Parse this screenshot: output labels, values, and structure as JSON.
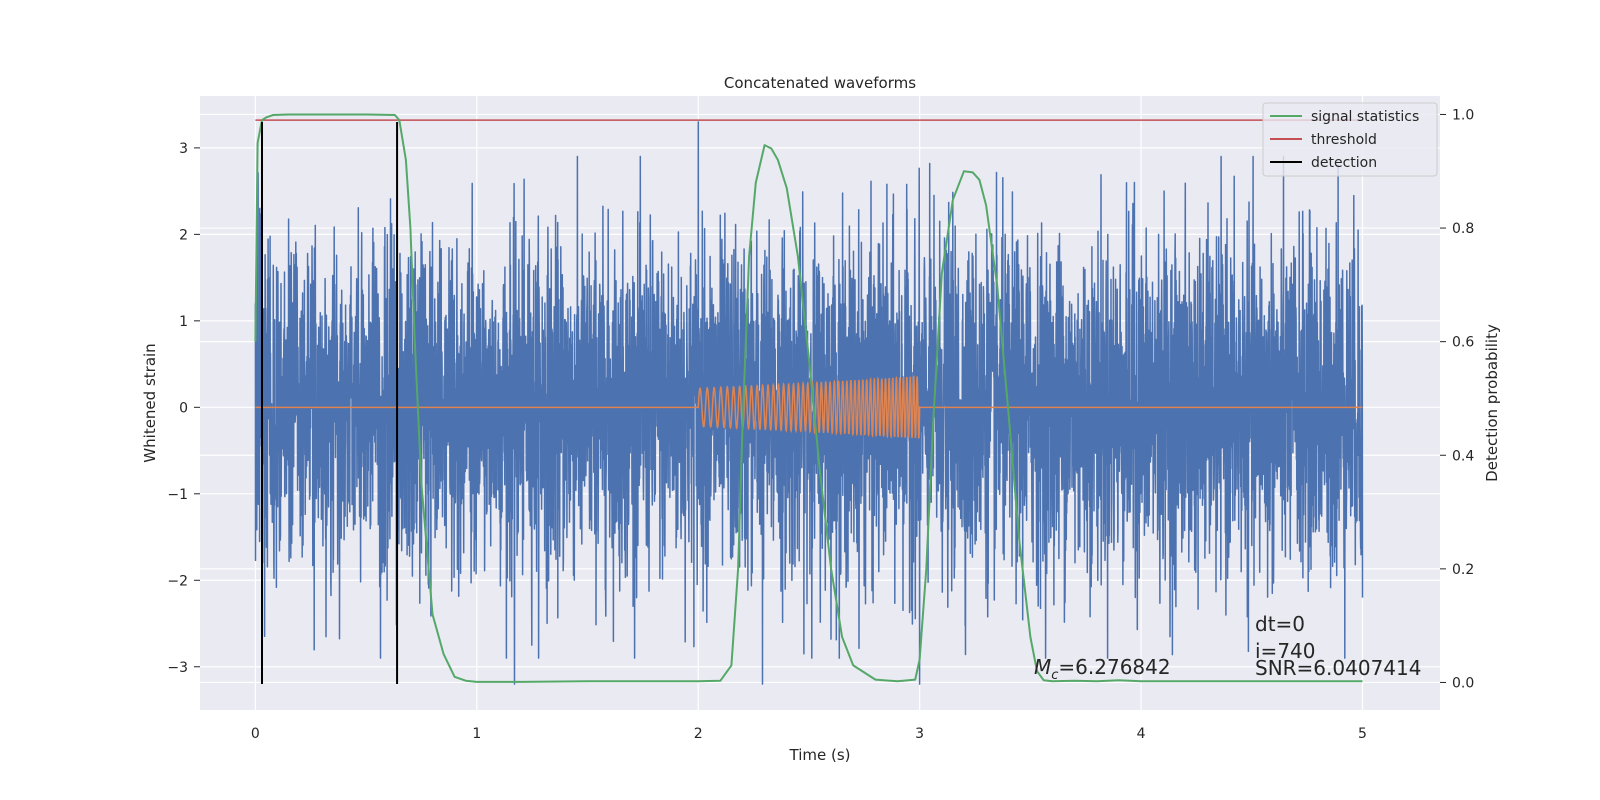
{
  "chart_data": {
    "type": "line",
    "title": "Concatenated waveforms",
    "xlabel": "Time (s)",
    "ylabel": "Whitened strain",
    "y2label": "Detection probability",
    "xlim": [
      -0.25,
      5.35
    ],
    "ylim": [
      -3.5,
      3.6
    ],
    "y2lim": [
      -0.0485,
      1.0325
    ],
    "x_ticks": [
      0,
      1,
      2,
      3,
      4,
      5
    ],
    "y_ticks": [
      -3,
      -2,
      -1,
      0,
      1,
      2,
      3
    ],
    "y2_ticks": [
      0.0,
      0.2,
      0.4,
      0.6,
      0.8,
      1.0
    ],
    "grid": true,
    "legend_position": "top-right",
    "legend": [
      "signal statistics",
      "threshold",
      "detection"
    ],
    "colors": {
      "strain": "#4c72b0",
      "template": "#dd8452",
      "signal_statistics": "#55a868",
      "threshold": "#c44e52",
      "detection": "#000000",
      "plot_background": "#eaeaf2",
      "grid": "#ffffff"
    },
    "series": [
      {
        "name": "whitened strain",
        "axis": "left",
        "description": "Gaussian noise, approx. 6000 samples on [0, 5] s, amplitude mostly within ±2.8",
        "x_range": [
          0,
          5
        ],
        "peak_points": [
          [
            0.02,
            2.3
          ],
          [
            0.64,
            -2.8
          ],
          [
            1.17,
            -3.2
          ],
          [
            2.0,
            3.3
          ],
          [
            2.29,
            -3.2
          ],
          [
            3.0,
            -3.2
          ],
          [
            3.97,
            2.6
          ],
          [
            4.89,
            2.8
          ],
          [
            5.0,
            -2.2
          ]
        ]
      },
      {
        "name": "injected waveform",
        "axis": "left",
        "description": "chirp between 2.0 s and 3.0 s, zero elsewhere",
        "x": [
          0,
          2.0,
          2.5,
          3.0,
          5.0
        ],
        "amplitude": [
          0,
          0.22,
          0.28,
          0.36,
          0
        ]
      },
      {
        "name": "signal statistics",
        "axis": "right",
        "x": [
          0.0,
          0.01,
          0.03,
          0.05,
          0.08,
          0.15,
          0.3,
          0.5,
          0.63,
          0.65,
          0.68,
          0.7,
          0.72,
          0.75,
          0.8,
          0.85,
          0.9,
          0.95,
          1.0,
          1.2,
          1.5,
          1.8,
          2.0,
          2.1,
          2.15,
          2.18,
          2.2,
          2.23,
          2.26,
          2.3,
          2.33,
          2.36,
          2.4,
          2.45,
          2.5,
          2.55,
          2.6,
          2.65,
          2.7,
          2.8,
          2.9,
          2.98,
          3.0,
          3.03,
          3.06,
          3.1,
          3.15,
          3.2,
          3.24,
          3.27,
          3.3,
          3.35,
          3.4,
          3.45,
          3.5,
          3.53,
          3.56,
          3.6,
          3.7,
          3.8,
          3.9,
          4.0,
          4.3,
          4.6,
          5.0
        ],
        "y": [
          0.6,
          0.95,
          0.99,
          0.995,
          0.999,
          1.0,
          1.0,
          1.0,
          0.999,
          0.99,
          0.92,
          0.8,
          0.6,
          0.35,
          0.12,
          0.05,
          0.01,
          0.003,
          0.001,
          0.001,
          0.002,
          0.002,
          0.002,
          0.003,
          0.03,
          0.2,
          0.45,
          0.75,
          0.88,
          0.946,
          0.94,
          0.92,
          0.87,
          0.75,
          0.57,
          0.37,
          0.2,
          0.08,
          0.03,
          0.005,
          0.002,
          0.005,
          0.04,
          0.2,
          0.45,
          0.72,
          0.85,
          0.9,
          0.898,
          0.885,
          0.84,
          0.7,
          0.48,
          0.25,
          0.08,
          0.02,
          0.004,
          0.002,
          0.003,
          0.002,
          0.004,
          0.002,
          0.002,
          0.002,
          0.002
        ]
      },
      {
        "name": "threshold",
        "axis": "right",
        "x": [
          0,
          5
        ],
        "y": [
          0.99,
          0.99
        ]
      },
      {
        "name": "detection",
        "axis": "left",
        "x": [
          0.03,
          0.64
        ],
        "y_range": [
          -3.2,
          3.3
        ]
      }
    ],
    "annotations": {
      "mc_symbol": "M",
      "mc_sub": "c",
      "mc_value": "=6.276842",
      "dt": "dt=0",
      "i": "i=740",
      "snr": "SNR=6.0407414"
    }
  }
}
